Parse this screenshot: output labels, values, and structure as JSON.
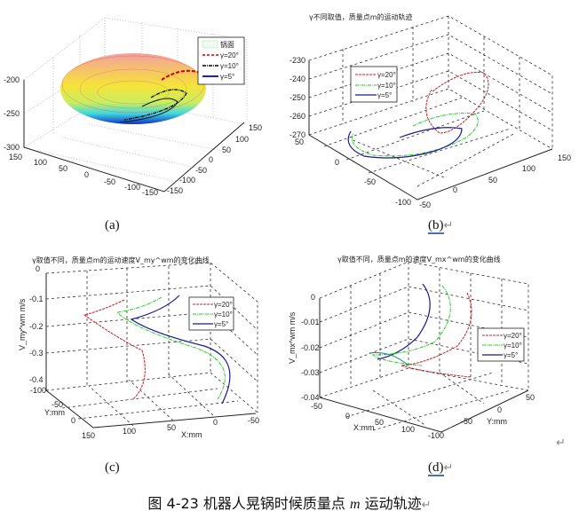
{
  "panel_a": {
    "label": "(a)",
    "z_ticks": [
      "-200",
      "-250",
      "-300"
    ],
    "x_ticks": [
      "150",
      "100",
      "50",
      "0",
      "-50",
      "-100",
      "-150"
    ],
    "y_ticks": [
      "150",
      "100",
      "50",
      "0",
      "-50",
      "-100",
      "-150"
    ],
    "legend": [
      "锅面",
      "γ=20°",
      "γ=10°",
      "γ=5°"
    ],
    "colors": {
      "gamma20": "#cc0000",
      "gamma10": "#000000",
      "gamma5": "#0000cc"
    }
  },
  "panel_b": {
    "label": "(b)",
    "return_mark": "↵",
    "title": "γ不同取值，质量点m的运动轨迹",
    "z_ticks": [
      "-230",
      "-240",
      "-250",
      "-260",
      "-270"
    ],
    "x_ticks": [
      "50",
      "0",
      "-50",
      "-100"
    ],
    "y_ticks": [
      "-50",
      "0",
      "50",
      "100",
      "150"
    ],
    "legend": [
      "γ=20°",
      "γ=10°",
      "γ=5°"
    ],
    "colors": {
      "gamma20": "#c8202a",
      "gamma10": "#22cc22",
      "gamma5": "#1a1a8c"
    }
  },
  "panel_c": {
    "label": "(c)",
    "title": "γ取值不同，质量点m的运动速度V_my^wm的变化曲线",
    "z_label": "V_my^wm m/s",
    "z_ticks": [
      "0",
      "-0.1",
      "-0.2",
      "-0.3",
      "-0.4"
    ],
    "y_label": "Y:mm",
    "y_ticks": [
      "-100",
      "-50",
      "0"
    ],
    "x_label": "X:mm",
    "x_ticks": [
      "150",
      "100",
      "50",
      "0",
      "-50"
    ],
    "legend": [
      "γ=20°",
      "γ=10°",
      "γ=5°"
    ]
  },
  "panel_d": {
    "label": "(d)",
    "return_mark": "↵",
    "title": "γ取值不同，质量点m的速度V_mx^wm的变化曲线",
    "z_label": "V_mx^wm m/s",
    "z_ticks": [
      "0",
      "-0.01",
      "-0.02",
      "-0.03",
      "-0.04"
    ],
    "x_label": "X:mm",
    "x_ticks": [
      "-50",
      "0",
      "50",
      "100"
    ],
    "y_label": "Y:mm",
    "y_ticks": [
      "-100",
      "-50",
      "0",
      "50"
    ],
    "legend": [
      "γ=20°",
      "γ=10°",
      "γ=5°"
    ]
  },
  "side_return_mark": "↵",
  "caption": {
    "prefix": "图 4-23  机器人晃锅时候质量点 ",
    "var": "m",
    "suffix": " 运动轨迹",
    "return_mark": "↵"
  }
}
